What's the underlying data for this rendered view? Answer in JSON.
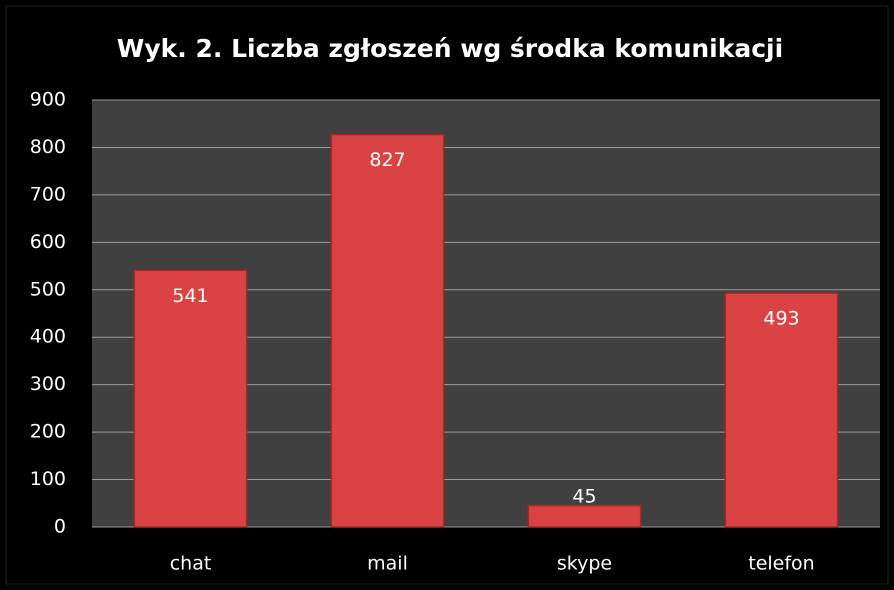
{
  "chart_data": {
    "type": "bar",
    "title": "Wyk. 2. Liczba zgłoszeń wg środka komunikacji",
    "categories": [
      "chat",
      "mail",
      "skype",
      "telefon"
    ],
    "values": [
      541,
      827,
      45,
      493
    ],
    "color": "#d94343",
    "ylim": [
      0,
      900
    ],
    "yticks": [
      0,
      100,
      200,
      300,
      400,
      500,
      600,
      700,
      800,
      900
    ],
    "grid": true
  }
}
